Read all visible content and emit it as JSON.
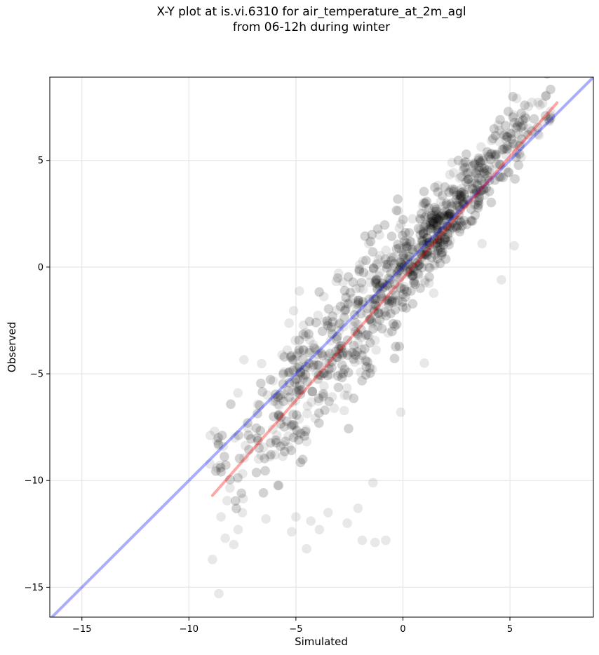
{
  "chart_data": {
    "type": "scatter",
    "title_line1": "X-Y plot at is.vi.6310 for air_temperature_at_2m_agl",
    "title_line2": "from 06-12h during winter",
    "xlabel": "Simulated",
    "ylabel": "Observed",
    "xlim": [
      -16.5,
      8.9
    ],
    "ylim": [
      -16.4,
      8.9
    ],
    "xticks": [
      -15,
      -10,
      -5,
      0,
      5
    ],
    "yticks": [
      -15,
      -10,
      -5,
      0,
      5
    ],
    "xtick_labels": [
      "−15",
      "−10",
      "−5",
      "0",
      "5"
    ],
    "ytick_labels": [
      "−15",
      "−10",
      "−5",
      "0",
      "5"
    ],
    "grid": true,
    "point_color": "#000000",
    "point_alpha": 0.09,
    "identity_line": {
      "color": "#0000ff",
      "alpha": 0.33,
      "x": [
        -16.5,
        8.9
      ],
      "y": [
        -16.5,
        8.9
      ]
    },
    "fit_line": {
      "color": "#ff0000",
      "alpha": 0.35,
      "x": [
        -8.9,
        7.2
      ],
      "y": [
        -10.7,
        7.7
      ]
    },
    "outliers": [
      [
        -8.6,
        -15.3
      ],
      [
        -8.9,
        -13.7
      ],
      [
        -7.9,
        -13.0
      ],
      [
        -4.5,
        -13.2
      ],
      [
        -3.9,
        -12.3
      ],
      [
        -2.6,
        -12.0
      ],
      [
        -1.9,
        -12.8
      ],
      [
        -1.3,
        -12.9
      ],
      [
        -0.8,
        -12.8
      ],
      [
        -2.1,
        -11.3
      ],
      [
        -1.4,
        -10.1
      ],
      [
        -3.5,
        -11.5
      ],
      [
        -4.3,
        -11.9
      ],
      [
        -5.0,
        -11.7
      ],
      [
        -7.7,
        -12.3
      ],
      [
        -8.3,
        -12.7
      ],
      [
        -8.5,
        -11.7
      ],
      [
        4.6,
        -0.6
      ],
      [
        5.2,
        1.0
      ],
      [
        3.7,
        1.1
      ],
      [
        -0.1,
        -6.8
      ],
      [
        1.0,
        -4.5
      ],
      [
        -8.8,
        -7.7
      ],
      [
        -8.4,
        -8.4
      ],
      [
        -1.5,
        1.2
      ],
      [
        -1.6,
        1.1
      ],
      [
        -1.1,
        1.5
      ],
      [
        -5.2,
        -12.4
      ],
      [
        -6.4,
        -11.8
      ],
      [
        -7.5,
        -11.5
      ]
    ],
    "cloud_seed": 6310,
    "cloud_count": 1500,
    "cloud_x_range": [
      -9.0,
      6.9
    ]
  }
}
